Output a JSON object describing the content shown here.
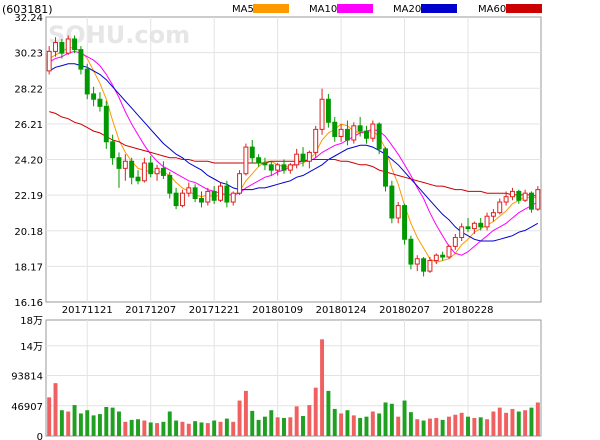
{
  "chart_data": [
    {
      "type": "candlestick",
      "panel": "price",
      "ticker": "(603181)",
      "watermark": "SOHU.com",
      "ylim": [
        16.16,
        32.24
      ],
      "yticks": [
        "32.24",
        "30.23",
        "28.22",
        "26.21",
        "24.20",
        "22.19",
        "20.18",
        "18.17",
        "16.16"
      ],
      "xticks": [
        {
          "index": 6,
          "label": "20171121"
        },
        {
          "index": 16,
          "label": "20171207"
        },
        {
          "index": 26,
          "label": "20171221"
        },
        {
          "index": 36,
          "label": "20180109"
        },
        {
          "index": 46,
          "label": "20180124"
        },
        {
          "index": 56,
          "label": "20180207"
        },
        {
          "index": 66,
          "label": "20180228"
        }
      ],
      "legend": [
        {
          "name": "MA5",
          "color": "#ff9900"
        },
        {
          "name": "MA10",
          "color": "#ff00ff"
        },
        {
          "name": "MA20",
          "color": "#0000cc"
        },
        {
          "name": "MA60",
          "color": "#cc0000"
        }
      ],
      "up_color": "#e02020",
      "down_color": "#009900",
      "ohlc": [
        [
          29.2,
          30.6,
          29.0,
          30.3
        ],
        [
          30.3,
          31.1,
          30.0,
          30.8
        ],
        [
          30.8,
          31.0,
          29.9,
          30.2
        ],
        [
          30.2,
          31.2,
          30.1,
          31.0
        ],
        [
          31.0,
          31.2,
          30.2,
          30.4
        ],
        [
          30.4,
          30.6,
          29.0,
          29.3
        ],
        [
          29.3,
          29.6,
          27.6,
          27.9
        ],
        [
          27.9,
          28.3,
          27.2,
          27.6
        ],
        [
          27.6,
          28.0,
          26.9,
          27.2
        ],
        [
          27.2,
          27.5,
          24.8,
          25.2
        ],
        [
          25.2,
          25.6,
          23.9,
          24.3
        ],
        [
          24.3,
          24.6,
          22.6,
          23.7
        ],
        [
          23.7,
          24.5,
          23.0,
          24.1
        ],
        [
          24.1,
          24.3,
          22.8,
          23.2
        ],
        [
          23.2,
          23.6,
          22.8,
          23.0
        ],
        [
          23.0,
          24.3,
          22.9,
          24.0
        ],
        [
          24.0,
          24.4,
          23.2,
          23.4
        ],
        [
          23.4,
          23.9,
          23.0,
          23.7
        ],
        [
          23.7,
          24.1,
          23.1,
          23.3
        ],
        [
          23.3,
          23.5,
          22.0,
          22.3
        ],
        [
          22.3,
          22.6,
          21.4,
          21.6
        ],
        [
          21.6,
          22.5,
          21.5,
          22.3
        ],
        [
          22.3,
          22.9,
          22.1,
          22.6
        ],
        [
          22.6,
          22.8,
          21.8,
          22.0
        ],
        [
          22.0,
          22.4,
          21.5,
          21.8
        ],
        [
          21.8,
          22.6,
          21.6,
          22.4
        ],
        [
          22.4,
          22.7,
          21.7,
          21.9
        ],
        [
          21.9,
          22.9,
          21.8,
          22.7
        ],
        [
          22.7,
          23.0,
          21.5,
          21.8
        ],
        [
          21.8,
          22.4,
          21.6,
          22.3
        ],
        [
          22.3,
          23.6,
          22.2,
          23.4
        ],
        [
          23.4,
          25.1,
          23.3,
          24.9
        ],
        [
          24.9,
          25.3,
          24.0,
          24.3
        ],
        [
          24.3,
          24.5,
          23.8,
          24.0
        ],
        [
          24.0,
          24.3,
          23.6,
          23.9
        ],
        [
          23.9,
          24.1,
          23.3,
          23.6
        ],
        [
          23.6,
          24.0,
          23.3,
          23.9
        ],
        [
          23.9,
          24.2,
          23.4,
          23.6
        ],
        [
          23.6,
          24.0,
          23.4,
          23.9
        ],
        [
          23.9,
          24.8,
          23.7,
          24.5
        ],
        [
          24.5,
          24.9,
          23.8,
          24.1
        ],
        [
          24.1,
          24.7,
          23.7,
          24.6
        ],
        [
          24.6,
          26.1,
          24.3,
          25.9
        ],
        [
          25.9,
          28.2,
          25.6,
          27.6
        ],
        [
          27.6,
          27.9,
          26.0,
          26.3
        ],
        [
          26.3,
          26.6,
          25.2,
          25.5
        ],
        [
          25.5,
          26.2,
          25.2,
          25.9
        ],
        [
          25.9,
          26.4,
          25.0,
          25.3
        ],
        [
          25.3,
          26.3,
          25.1,
          26.1
        ],
        [
          26.1,
          26.6,
          25.5,
          25.8
        ],
        [
          25.8,
          26.1,
          25.1,
          25.4
        ],
        [
          25.4,
          26.4,
          25.2,
          26.2
        ],
        [
          26.2,
          26.3,
          24.5,
          24.8
        ],
        [
          24.8,
          24.9,
          22.4,
          22.7
        ],
        [
          22.7,
          23.0,
          20.6,
          20.9
        ],
        [
          20.9,
          21.8,
          20.6,
          21.6
        ],
        [
          21.6,
          21.7,
          19.4,
          19.7
        ],
        [
          19.7,
          19.9,
          18.0,
          18.3
        ],
        [
          18.3,
          18.8,
          17.9,
          18.6
        ],
        [
          18.6,
          18.7,
          17.6,
          17.9
        ],
        [
          17.9,
          18.7,
          17.8,
          18.5
        ],
        [
          18.5,
          18.9,
          18.3,
          18.8
        ],
        [
          18.8,
          19.0,
          18.5,
          18.7
        ],
        [
          18.7,
          19.4,
          18.6,
          19.3
        ],
        [
          19.3,
          20.0,
          19.1,
          19.8
        ],
        [
          19.8,
          20.6,
          19.6,
          20.4
        ],
        [
          20.4,
          20.9,
          20.1,
          20.3
        ],
        [
          20.3,
          20.7,
          20.0,
          20.6
        ],
        [
          20.6,
          20.9,
          20.2,
          20.4
        ],
        [
          20.4,
          21.2,
          20.2,
          21.0
        ],
        [
          21.0,
          21.4,
          20.7,
          21.2
        ],
        [
          21.2,
          22.0,
          21.1,
          21.8
        ],
        [
          21.8,
          22.4,
          21.6,
          22.1
        ],
        [
          22.1,
          22.6,
          21.9,
          22.4
        ],
        [
          22.4,
          22.5,
          21.7,
          21.9
        ],
        [
          21.9,
          22.5,
          21.8,
          22.3
        ],
        [
          22.3,
          22.4,
          21.2,
          21.4
        ],
        [
          21.4,
          22.7,
          21.3,
          22.5
        ]
      ],
      "ma5": [
        29.9,
        30.1,
        30.3,
        30.5,
        30.5,
        30.3,
        29.9,
        29.2,
        28.5,
        27.6,
        26.4,
        25.3,
        24.6,
        24.1,
        23.7,
        23.6,
        23.5,
        23.5,
        23.5,
        23.3,
        22.9,
        22.6,
        22.4,
        22.2,
        22.1,
        22.2,
        22.1,
        22.2,
        22.2,
        22.2,
        22.4,
        23.0,
        23.4,
        23.8,
        24.1,
        24.1,
        23.9,
        23.8,
        23.8,
        23.9,
        24.0,
        24.2,
        24.6,
        25.3,
        25.7,
        25.9,
        26.2,
        26.1,
        25.8,
        25.7,
        25.7,
        25.8,
        25.5,
        24.8,
        23.7,
        22.8,
        21.6,
        20.6,
        19.8,
        19.2,
        18.6,
        18.4,
        18.5,
        18.6,
        18.9,
        19.4,
        19.7,
        20.1,
        20.3,
        20.5,
        20.7,
        21.0,
        21.3,
        21.7,
        21.9,
        22.1,
        22.0,
        22.1
      ],
      "ma10": [
        29.7,
        29.9,
        30.0,
        30.2,
        30.3,
        30.2,
        30.0,
        29.8,
        29.5,
        29.0,
        28.4,
        27.7,
        26.9,
        26.2,
        25.6,
        25.0,
        24.5,
        24.1,
        23.8,
        23.6,
        23.4,
        23.2,
        23.0,
        22.9,
        22.7,
        22.5,
        22.4,
        22.3,
        22.2,
        22.2,
        22.3,
        22.6,
        22.8,
        23.0,
        23.2,
        23.3,
        23.5,
        23.6,
        23.8,
        24.0,
        24.1,
        24.1,
        24.3,
        24.6,
        24.8,
        25.0,
        25.1,
        25.3,
        25.5,
        25.7,
        25.8,
        25.9,
        25.8,
        25.5,
        25.0,
        24.5,
        23.9,
        23.3,
        22.6,
        22.0,
        21.2,
        20.5,
        19.9,
        19.3,
        18.9,
        18.8,
        19.0,
        19.3,
        19.6,
        19.9,
        20.2,
        20.4,
        20.6,
        20.9,
        21.2,
        21.4,
        21.6,
        21.8
      ],
      "ma20": [
        29.2,
        29.4,
        29.5,
        29.6,
        29.6,
        29.5,
        29.4,
        29.2,
        29.0,
        28.7,
        28.3,
        27.9,
        27.5,
        27.1,
        26.7,
        26.3,
        25.9,
        25.5,
        25.1,
        24.8,
        24.5,
        24.3,
        24.0,
        23.8,
        23.6,
        23.3,
        23.1,
        22.9,
        22.8,
        22.6,
        22.5,
        22.5,
        22.5,
        22.6,
        22.6,
        22.7,
        22.8,
        22.9,
        23.0,
        23.2,
        23.3,
        23.5,
        23.7,
        23.9,
        24.2,
        24.4,
        24.6,
        24.8,
        24.9,
        25.0,
        25.0,
        24.9,
        24.7,
        24.5,
        24.2,
        23.9,
        23.5,
        23.1,
        22.7,
        22.3,
        21.9,
        21.5,
        21.1,
        20.8,
        20.4,
        20.1,
        19.9,
        19.7,
        19.6,
        19.6,
        19.6,
        19.7,
        19.8,
        19.9,
        20.1,
        20.2,
        20.4,
        20.6
      ],
      "ma60": [
        26.9,
        26.8,
        26.6,
        26.5,
        26.3,
        26.2,
        26.0,
        25.8,
        25.7,
        25.5,
        25.3,
        25.2,
        25.0,
        24.9,
        24.8,
        24.7,
        24.6,
        24.5,
        24.4,
        24.3,
        24.3,
        24.2,
        24.2,
        24.1,
        24.1,
        24.1,
        24.0,
        24.0,
        24.0,
        24.0,
        24.0,
        24.0,
        24.0,
        24.0,
        24.0,
        24.1,
        24.1,
        24.1,
        24.1,
        24.1,
        24.1,
        24.2,
        24.2,
        24.2,
        24.2,
        24.2,
        24.1,
        24.1,
        24.0,
        23.9,
        23.9,
        23.8,
        23.6,
        23.5,
        23.4,
        23.3,
        23.2,
        23.1,
        23.0,
        22.9,
        22.8,
        22.7,
        22.7,
        22.6,
        22.5,
        22.5,
        22.4,
        22.4,
        22.4,
        22.3,
        22.3,
        22.3,
        22.3,
        22.2,
        22.2,
        22.2,
        22.2,
        22.1
      ]
    },
    {
      "type": "bar",
      "panel": "volume",
      "ylim": [
        0,
        180000
      ],
      "yticks": [
        {
          "value": 180000,
          "label": "18万"
        },
        {
          "value": 140000,
          "label": "14万"
        },
        {
          "value": 93814,
          "label": "93814"
        },
        {
          "value": 46907,
          "label": "46907"
        },
        {
          "value": 0,
          "label": "0"
        }
      ],
      "values": [
        60000,
        82000,
        40000,
        38000,
        48000,
        35000,
        40000,
        32000,
        34000,
        45000,
        44000,
        38000,
        22000,
        25000,
        26000,
        24000,
        21000,
        20000,
        22000,
        38000,
        24000,
        22000,
        19000,
        23000,
        21000,
        20000,
        24000,
        22000,
        27000,
        22000,
        55000,
        70000,
        39000,
        25000,
        30000,
        40000,
        29000,
        28000,
        29000,
        46000,
        31000,
        48000,
        75000,
        150000,
        70000,
        42000,
        35000,
        40000,
        32000,
        28000,
        30000,
        38000,
        35000,
        52000,
        50000,
        30000,
        55000,
        37000,
        26000,
        24000,
        27000,
        28000,
        25000,
        30000,
        33000,
        36000,
        30000,
        28000,
        29000,
        26000,
        38000,
        44000,
        36000,
        42000,
        38000,
        40000,
        44000,
        52000
      ]
    }
  ]
}
